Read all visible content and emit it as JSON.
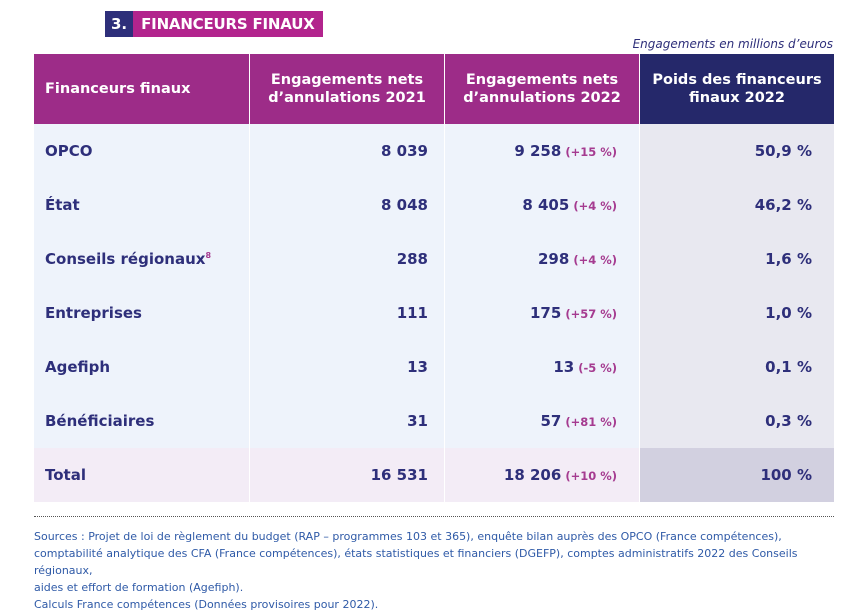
{
  "section": {
    "number": "3.",
    "title": "FINANCEURS FINAUX"
  },
  "unit_note": "Engagements en millions d’euros",
  "table": {
    "headers": [
      "Financeurs finaux",
      "Engagements nets d’annulations 2021",
      "Engagements nets d’annulations 2022",
      "Poids des financeurs finaux 2022"
    ],
    "rows": [
      {
        "name": "OPCO",
        "sup": "",
        "v2021": "8 039",
        "v2022": "9 258",
        "var": "(+15 %)",
        "poids": "50,9 %"
      },
      {
        "name": "État",
        "sup": "",
        "v2021": "8 048",
        "v2022": "8 405",
        "var": "(+4 %)",
        "poids": "46,2 %"
      },
      {
        "name": "Conseils régionaux",
        "sup": "8",
        "v2021": "288",
        "v2022": "298",
        "var": "(+4 %)",
        "poids": "1,6 %"
      },
      {
        "name": "Entreprises",
        "sup": "",
        "v2021": "111",
        "v2022": "175",
        "var": "(+57 %)",
        "poids": "1,0 %"
      },
      {
        "name": "Agefiph",
        "sup": "",
        "v2021": "13",
        "v2022": "13",
        "var": "(-5 %)",
        "poids": "0,1 %"
      },
      {
        "name": "Bénéficiaires",
        "sup": "",
        "v2021": "31",
        "v2022": "57",
        "var": "(+81 %)",
        "poids": "0,3 %"
      }
    ],
    "total": {
      "name": "Total",
      "v2021": "16 531",
      "v2022": "18 206",
      "var": "(+10 %)",
      "poids": "100 %"
    }
  },
  "sources": {
    "line1": "Sources : Projet de loi de règlement du budget (RAP – programmes 103 et 365), enquête bilan auprès des OPCO (France compétences),",
    "line2": "comptabilité analytique des CFA (France compétences), états statistiques et financiers (DGEFP), comptes administratifs 2022 des Conseils régionaux,",
    "line3": "aides et effort de formation (Agefiph).",
    "line4": "Calculs France compétences (Données provisoires pour 2022)."
  }
}
